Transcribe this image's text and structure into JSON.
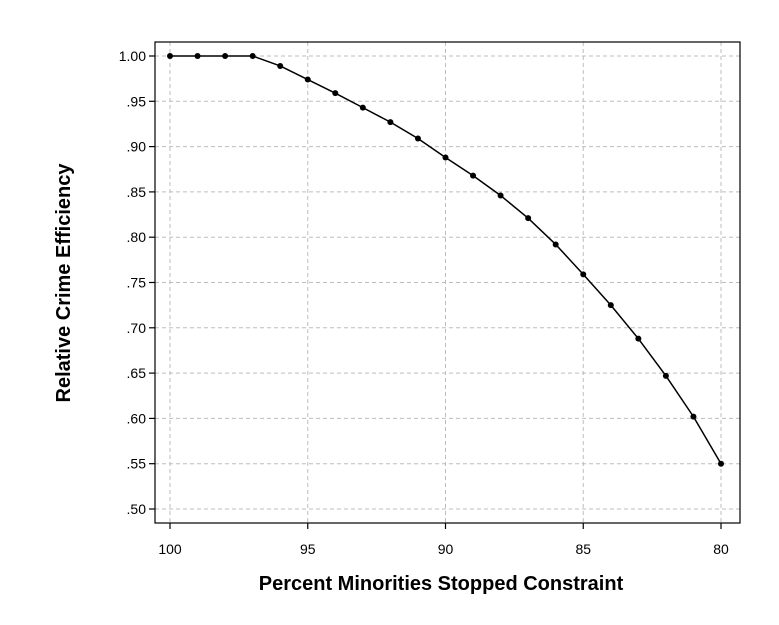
{
  "chart_data": {
    "type": "line",
    "title": "",
    "xlabel": "Percent Minorities Stopped Constraint",
    "ylabel": "Relative Crime Efficiency",
    "xlim": [
      100,
      80
    ],
    "ylim": [
      0.5,
      1.0
    ],
    "x_reversed": true,
    "grid": true,
    "x_ticks": [
      100,
      95,
      90,
      85,
      80
    ],
    "x_tick_labels": [
      "100",
      "95",
      "90",
      "85",
      "80"
    ],
    "y_ticks": [
      0.5,
      0.55,
      0.6,
      0.65,
      0.7,
      0.75,
      0.8,
      0.85,
      0.9,
      0.95,
      1.0
    ],
    "y_tick_labels": [
      ".50",
      ".55",
      ".60",
      ".65",
      ".70",
      ".75",
      ".80",
      ".85",
      ".90",
      ".95",
      "1.00"
    ],
    "series": [
      {
        "x": [
          100,
          99,
          98,
          97,
          96,
          95,
          94,
          93,
          92,
          91,
          90,
          89,
          88,
          87,
          86,
          85,
          84,
          83,
          82,
          81,
          80
        ],
        "y": [
          1.0,
          1.0,
          1.0,
          1.0,
          0.989,
          0.974,
          0.959,
          0.943,
          0.927,
          0.909,
          0.888,
          0.868,
          0.846,
          0.821,
          0.792,
          0.759,
          0.725,
          0.688,
          0.647,
          0.602,
          0.55
        ],
        "color": "#000000"
      }
    ]
  }
}
